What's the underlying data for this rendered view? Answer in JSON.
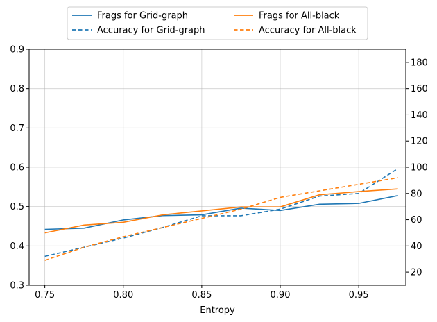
{
  "chart_data": {
    "type": "line",
    "title": "",
    "xlabel": "Entropy",
    "ylabel": "",
    "ylabel_right": "",
    "xlim": [
      0.74,
      0.98
    ],
    "ylim": [
      0.3,
      0.9
    ],
    "ylim_right": [
      10,
      190
    ],
    "x_ticks": [
      "0.75",
      "0.80",
      "0.85",
      "0.90",
      "0.95"
    ],
    "y_ticks": [
      "0.3",
      "0.4",
      "0.5",
      "0.6",
      "0.7",
      "0.8",
      "0.9"
    ],
    "y_ticks_right": [
      "20",
      "40",
      "60",
      "80",
      "100",
      "120",
      "140",
      "160",
      "180"
    ],
    "grid": true,
    "legend_position": "top-center, outside",
    "x": [
      0.75,
      0.775,
      0.8,
      0.825,
      0.85,
      0.875,
      0.9,
      0.925,
      0.95,
      0.975
    ],
    "series": [
      {
        "name": "Frags for Grid-graph",
        "axis": "left",
        "style": "solid",
        "color": "#1f77b4",
        "values": [
          0.442,
          0.445,
          0.466,
          0.477,
          0.479,
          0.496,
          0.49,
          0.506,
          0.508,
          0.528
        ]
      },
      {
        "name": "Accuracy for Grid-graph",
        "axis": "right",
        "style": "dashed",
        "color": "#1f77b4",
        "values": [
          32,
          39,
          46,
          54,
          63,
          63,
          68,
          78,
          80,
          99
        ]
      },
      {
        "name": "Frags for All-black",
        "axis": "left",
        "style": "solid",
        "color": "#ff7f0e",
        "values": [
          0.433,
          0.453,
          0.46,
          0.479,
          0.489,
          0.499,
          0.499,
          0.53,
          0.538,
          0.545
        ]
      },
      {
        "name": "Accuracy for All-black",
        "axis": "right",
        "style": "dashed",
        "color": "#ff7f0e",
        "values": [
          29,
          39,
          47,
          54,
          61,
          68,
          77,
          82,
          87,
          92
        ]
      }
    ]
  }
}
